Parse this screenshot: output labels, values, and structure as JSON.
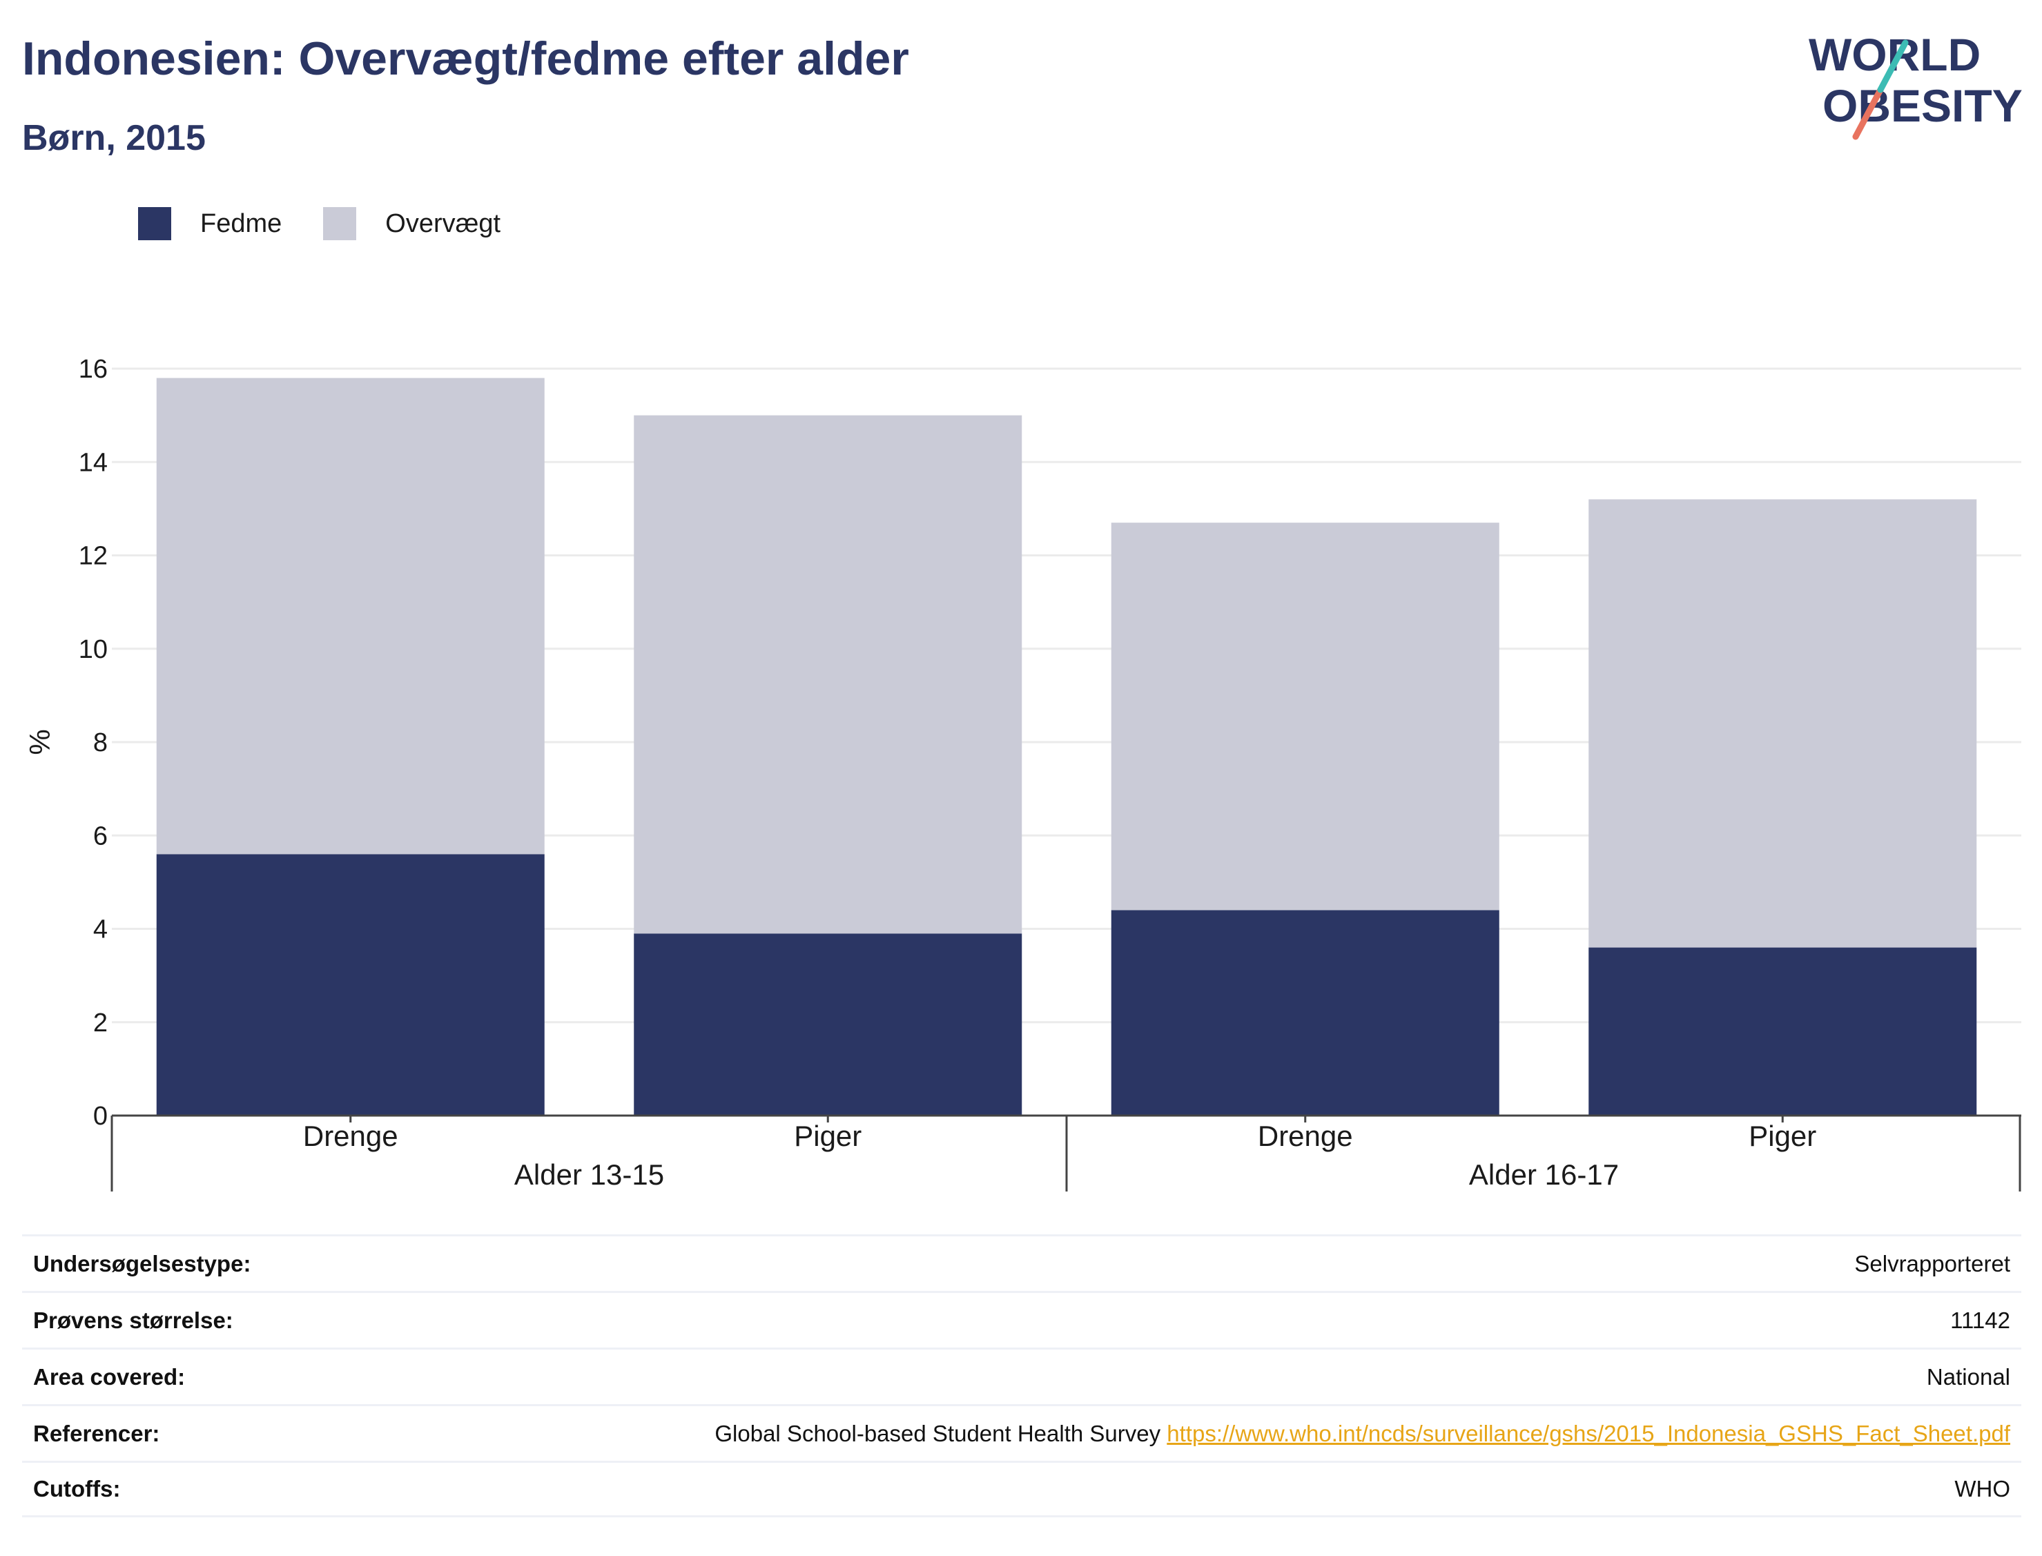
{
  "header": {
    "title": "Indonesien: Overvægt/fedme efter alder",
    "subtitle": "Børn, 2015",
    "logo_line1": "WORLD",
    "logo_line2": "OBESITY"
  },
  "colors": {
    "title": "#2b3664",
    "fedme": "#2b3664",
    "overvaegt": "#cacbd7",
    "link": "#e7a517",
    "logo_slash_teal": "#3cbcb4",
    "logo_slash_coral": "#e8735f"
  },
  "legend": [
    {
      "label": "Fedme",
      "color": "#2b3664"
    },
    {
      "label": "Overvægt",
      "color": "#cacbd7"
    }
  ],
  "chart_data": {
    "type": "bar",
    "stacked": true,
    "ylabel": "%",
    "ylim": [
      0,
      16
    ],
    "yticks": [
      0,
      2,
      4,
      6,
      8,
      10,
      12,
      14,
      16
    ],
    "grid": true,
    "legend_position": "top-left",
    "groups": [
      {
        "label": "Alder 13-15",
        "categories": [
          "Drenge",
          "Piger"
        ]
      },
      {
        "label": "Alder 16-17",
        "categories": [
          "Drenge",
          "Piger"
        ]
      }
    ],
    "categories": [
      "Drenge",
      "Piger",
      "Drenge",
      "Piger"
    ],
    "series": [
      {
        "name": "Fedme",
        "values": [
          5.6,
          3.9,
          4.4,
          3.6
        ]
      },
      {
        "name": "Overvægt",
        "values": [
          10.2,
          11.1,
          8.3,
          9.6
        ]
      }
    ]
  },
  "info": [
    {
      "key": "Undersøgelsestype:",
      "value": "Selvrapporteret"
    },
    {
      "key": "Prøvens størrelse:",
      "value": "11142"
    },
    {
      "key": "Area covered:",
      "value": "National"
    },
    {
      "key": "Referencer:",
      "value": "Global School-based Student Health Survey",
      "link": "https://www.who.int/ncds/surveillance/gshs/2015_Indonesia_GSHS_Fact_Sheet.pdf"
    },
    {
      "key": "Cutoffs:",
      "value": "WHO"
    }
  ]
}
